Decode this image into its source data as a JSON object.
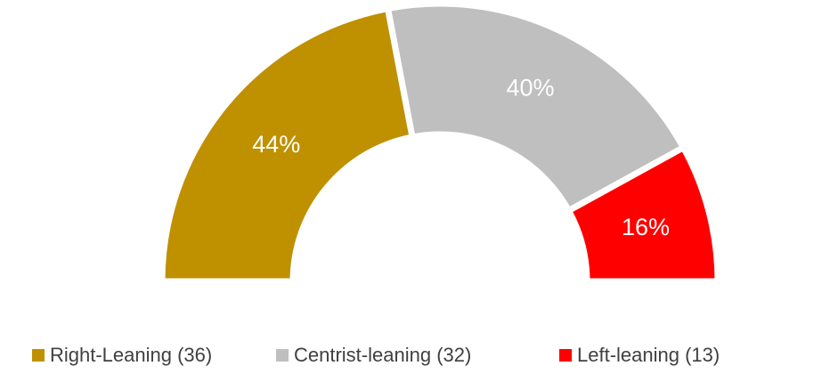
{
  "chart_data": {
    "type": "donut",
    "half": true,
    "categories": [
      "Right-Leaning (36)",
      "Centrist-leaning (32)",
      "Left-leaning (13)"
    ],
    "values": [
      44,
      40,
      16
    ],
    "value_labels": [
      "44%",
      "40%",
      "16%"
    ],
    "colors": [
      "#bf9000",
      "#bfbfbf",
      "#ff0000"
    ],
    "legend": "bottom"
  }
}
